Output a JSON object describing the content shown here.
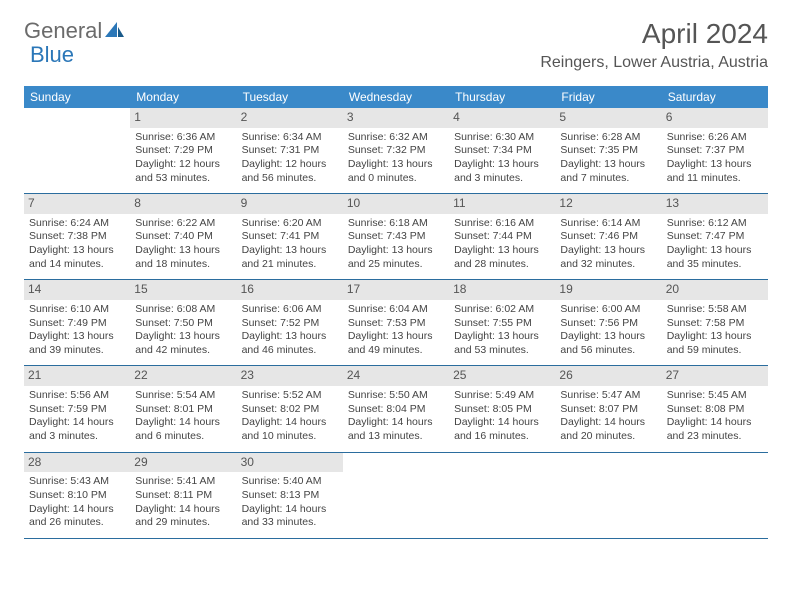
{
  "logo": {
    "word1": "General",
    "word2": "Blue"
  },
  "month_title": "April 2024",
  "location": "Reingers, Lower Austria, Austria",
  "day_headers": [
    "Sunday",
    "Monday",
    "Tuesday",
    "Wednesday",
    "Thursday",
    "Friday",
    "Saturday"
  ],
  "colors": {
    "header_bg": "#3a89c9",
    "row_border": "#2b6d9e",
    "daynum_bg": "#e6e6e6",
    "text": "#444444",
    "logo_gray": "#6b6b6b",
    "logo_blue": "#2b77b8"
  },
  "weeks": [
    [
      null,
      {
        "n": "1",
        "sunrise": "Sunrise: 6:36 AM",
        "sunset": "Sunset: 7:29 PM",
        "daylight": "Daylight: 12 hours and 53 minutes."
      },
      {
        "n": "2",
        "sunrise": "Sunrise: 6:34 AM",
        "sunset": "Sunset: 7:31 PM",
        "daylight": "Daylight: 12 hours and 56 minutes."
      },
      {
        "n": "3",
        "sunrise": "Sunrise: 6:32 AM",
        "sunset": "Sunset: 7:32 PM",
        "daylight": "Daylight: 13 hours and 0 minutes."
      },
      {
        "n": "4",
        "sunrise": "Sunrise: 6:30 AM",
        "sunset": "Sunset: 7:34 PM",
        "daylight": "Daylight: 13 hours and 3 minutes."
      },
      {
        "n": "5",
        "sunrise": "Sunrise: 6:28 AM",
        "sunset": "Sunset: 7:35 PM",
        "daylight": "Daylight: 13 hours and 7 minutes."
      },
      {
        "n": "6",
        "sunrise": "Sunrise: 6:26 AM",
        "sunset": "Sunset: 7:37 PM",
        "daylight": "Daylight: 13 hours and 11 minutes."
      }
    ],
    [
      {
        "n": "7",
        "sunrise": "Sunrise: 6:24 AM",
        "sunset": "Sunset: 7:38 PM",
        "daylight": "Daylight: 13 hours and 14 minutes."
      },
      {
        "n": "8",
        "sunrise": "Sunrise: 6:22 AM",
        "sunset": "Sunset: 7:40 PM",
        "daylight": "Daylight: 13 hours and 18 minutes."
      },
      {
        "n": "9",
        "sunrise": "Sunrise: 6:20 AM",
        "sunset": "Sunset: 7:41 PM",
        "daylight": "Daylight: 13 hours and 21 minutes."
      },
      {
        "n": "10",
        "sunrise": "Sunrise: 6:18 AM",
        "sunset": "Sunset: 7:43 PM",
        "daylight": "Daylight: 13 hours and 25 minutes."
      },
      {
        "n": "11",
        "sunrise": "Sunrise: 6:16 AM",
        "sunset": "Sunset: 7:44 PM",
        "daylight": "Daylight: 13 hours and 28 minutes."
      },
      {
        "n": "12",
        "sunrise": "Sunrise: 6:14 AM",
        "sunset": "Sunset: 7:46 PM",
        "daylight": "Daylight: 13 hours and 32 minutes."
      },
      {
        "n": "13",
        "sunrise": "Sunrise: 6:12 AM",
        "sunset": "Sunset: 7:47 PM",
        "daylight": "Daylight: 13 hours and 35 minutes."
      }
    ],
    [
      {
        "n": "14",
        "sunrise": "Sunrise: 6:10 AM",
        "sunset": "Sunset: 7:49 PM",
        "daylight": "Daylight: 13 hours and 39 minutes."
      },
      {
        "n": "15",
        "sunrise": "Sunrise: 6:08 AM",
        "sunset": "Sunset: 7:50 PM",
        "daylight": "Daylight: 13 hours and 42 minutes."
      },
      {
        "n": "16",
        "sunrise": "Sunrise: 6:06 AM",
        "sunset": "Sunset: 7:52 PM",
        "daylight": "Daylight: 13 hours and 46 minutes."
      },
      {
        "n": "17",
        "sunrise": "Sunrise: 6:04 AM",
        "sunset": "Sunset: 7:53 PM",
        "daylight": "Daylight: 13 hours and 49 minutes."
      },
      {
        "n": "18",
        "sunrise": "Sunrise: 6:02 AM",
        "sunset": "Sunset: 7:55 PM",
        "daylight": "Daylight: 13 hours and 53 minutes."
      },
      {
        "n": "19",
        "sunrise": "Sunrise: 6:00 AM",
        "sunset": "Sunset: 7:56 PM",
        "daylight": "Daylight: 13 hours and 56 minutes."
      },
      {
        "n": "20",
        "sunrise": "Sunrise: 5:58 AM",
        "sunset": "Sunset: 7:58 PM",
        "daylight": "Daylight: 13 hours and 59 minutes."
      }
    ],
    [
      {
        "n": "21",
        "sunrise": "Sunrise: 5:56 AM",
        "sunset": "Sunset: 7:59 PM",
        "daylight": "Daylight: 14 hours and 3 minutes."
      },
      {
        "n": "22",
        "sunrise": "Sunrise: 5:54 AM",
        "sunset": "Sunset: 8:01 PM",
        "daylight": "Daylight: 14 hours and 6 minutes."
      },
      {
        "n": "23",
        "sunrise": "Sunrise: 5:52 AM",
        "sunset": "Sunset: 8:02 PM",
        "daylight": "Daylight: 14 hours and 10 minutes."
      },
      {
        "n": "24",
        "sunrise": "Sunrise: 5:50 AM",
        "sunset": "Sunset: 8:04 PM",
        "daylight": "Daylight: 14 hours and 13 minutes."
      },
      {
        "n": "25",
        "sunrise": "Sunrise: 5:49 AM",
        "sunset": "Sunset: 8:05 PM",
        "daylight": "Daylight: 14 hours and 16 minutes."
      },
      {
        "n": "26",
        "sunrise": "Sunrise: 5:47 AM",
        "sunset": "Sunset: 8:07 PM",
        "daylight": "Daylight: 14 hours and 20 minutes."
      },
      {
        "n": "27",
        "sunrise": "Sunrise: 5:45 AM",
        "sunset": "Sunset: 8:08 PM",
        "daylight": "Daylight: 14 hours and 23 minutes."
      }
    ],
    [
      {
        "n": "28",
        "sunrise": "Sunrise: 5:43 AM",
        "sunset": "Sunset: 8:10 PM",
        "daylight": "Daylight: 14 hours and 26 minutes."
      },
      {
        "n": "29",
        "sunrise": "Sunrise: 5:41 AM",
        "sunset": "Sunset: 8:11 PM",
        "daylight": "Daylight: 14 hours and 29 minutes."
      },
      {
        "n": "30",
        "sunrise": "Sunrise: 5:40 AM",
        "sunset": "Sunset: 8:13 PM",
        "daylight": "Daylight: 14 hours and 33 minutes."
      },
      null,
      null,
      null,
      null
    ]
  ]
}
